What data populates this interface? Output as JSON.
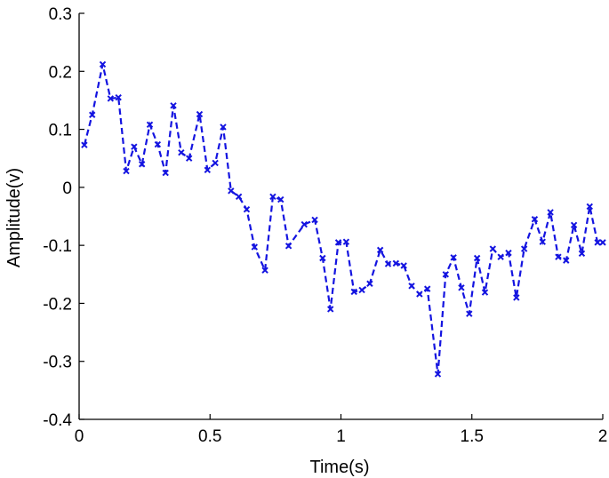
{
  "chart_data": {
    "type": "line",
    "title": "",
    "xlabel": "Time(s)",
    "ylabel": "Amplitude(v)",
    "xlim": [
      0,
      2
    ],
    "ylim": [
      -0.4,
      0.3
    ],
    "xticks": [
      0,
      0.5,
      1,
      1.5,
      2
    ],
    "yticks": [
      -0.4,
      -0.3,
      -0.2,
      -0.1,
      0,
      0.1,
      0.2,
      0.3
    ],
    "xtick_labels": [
      "0",
      "0.5",
      "1",
      "1.5",
      "2"
    ],
    "ytick_labels": [
      "-0.4",
      "-0.3",
      "-0.2",
      "-0.1",
      "0",
      "0.1",
      "0.2",
      "0.3"
    ],
    "grid": false,
    "legend": "none",
    "series": [
      {
        "color": "#1414e0",
        "line_style": "dashed",
        "marker": "x",
        "x": [
          0.02,
          0.05,
          0.09,
          0.12,
          0.15,
          0.18,
          0.21,
          0.24,
          0.27,
          0.3,
          0.33,
          0.36,
          0.39,
          0.42,
          0.46,
          0.49,
          0.52,
          0.55,
          0.58,
          0.61,
          0.64,
          0.67,
          0.71,
          0.74,
          0.77,
          0.8,
          0.86,
          0.9,
          0.93,
          0.96,
          0.99,
          1.02,
          1.05,
          1.08,
          1.11,
          1.15,
          1.18,
          1.21,
          1.24,
          1.27,
          1.3,
          1.33,
          1.37,
          1.4,
          1.43,
          1.46,
          1.49,
          1.52,
          1.55,
          1.58,
          1.61,
          1.64,
          1.67,
          1.7,
          1.74,
          1.77,
          1.8,
          1.83,
          1.86,
          1.89,
          1.92,
          1.95,
          1.98,
          2.0
        ],
        "y": [
          0.073,
          0.125,
          0.212,
          0.153,
          0.155,
          0.028,
          0.07,
          0.04,
          0.108,
          0.074,
          0.025,
          0.141,
          0.06,
          0.05,
          0.126,
          0.03,
          0.042,
          0.104,
          -0.006,
          -0.016,
          -0.038,
          -0.103,
          -0.143,
          -0.016,
          -0.021,
          -0.101,
          -0.064,
          -0.056,
          -0.122,
          -0.21,
          -0.095,
          -0.094,
          -0.18,
          -0.177,
          -0.166,
          -0.108,
          -0.132,
          -0.131,
          -0.135,
          -0.17,
          -0.184,
          -0.175,
          -0.322,
          -0.15,
          -0.121,
          -0.173,
          -0.218,
          -0.122,
          -0.181,
          -0.106,
          -0.12,
          -0.113,
          -0.19,
          -0.106,
          -0.055,
          -0.094,
          -0.043,
          -0.12,
          -0.126,
          -0.065,
          -0.114,
          -0.033,
          -0.095,
          -0.095
        ]
      }
    ]
  }
}
